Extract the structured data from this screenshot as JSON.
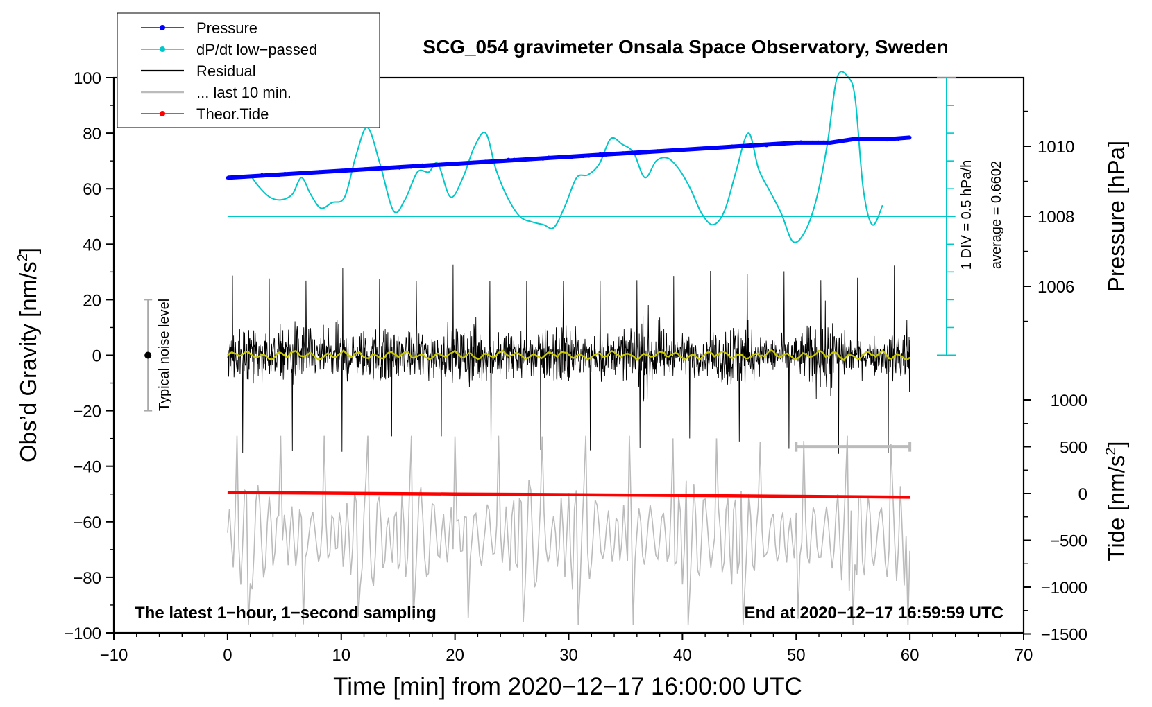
{
  "chart_data": {
    "type": "line",
    "title": "SCG_054 gravimeter Onsala Space Observatory, Sweden",
    "xlabel": "Time [min] from 2020−12−17 16:00:00 UTC",
    "ylabel_left": "Obs’d Gravity [nm/s",
    "ylabel_left_sup": "2",
    "ylabel_left_close": "]",
    "ylabel_right_pressure": "Pressure [hPa]",
    "ylabel_right_tide": "Tide [nm/s",
    "ylabel_right_tide_sup": "2",
    "ylabel_right_tide_close": "]",
    "xlim": [
      -10,
      70
    ],
    "ylim": [
      -100,
      100
    ],
    "x_ticks": [
      -10,
      0,
      10,
      20,
      30,
      40,
      50,
      60,
      70
    ],
    "x_tick_labels": [
      "−10",
      "0",
      "10",
      "20",
      "30",
      "40",
      "50",
      "60",
      "70"
    ],
    "y_ticks": [
      -100,
      -80,
      -60,
      -40,
      -20,
      0,
      20,
      40,
      60,
      80,
      100
    ],
    "y_tick_labels": [
      "−100",
      "−80",
      "−60",
      "−40",
      "−20",
      "0",
      "20",
      "40",
      "60",
      "80",
      "100"
    ],
    "pressure_axis": {
      "ticks": [
        1006,
        1008,
        1010
      ],
      "tick_labels": [
        "1006",
        "1008",
        "1010"
      ],
      "range": [
        1004,
        1012
      ]
    },
    "tide_axis": {
      "ticks": [
        -1500,
        -1000,
        -500,
        0,
        500,
        1000
      ],
      "tick_labels": [
        "−1500",
        "−1000",
        "−500",
        "0",
        "500",
        "1000"
      ],
      "range": [
        -1500,
        1000
      ]
    },
    "dpdt_scale_label": "1 DIV = 0.5 hPa/h",
    "dpdt_average_label": "average = 0.6602",
    "dpdt_baseline_gravity": 50,
    "noise_bar": {
      "x": -7,
      "center": 0,
      "half_range": 20,
      "label": "Typical noise level"
    },
    "last10_bar": {
      "x_start": 50,
      "x_end": 60,
      "y": -33
    },
    "footer_left": "The latest 1−hour, 1−second sampling",
    "footer_right": "End at 2020−12−17 16:59:59 UTC",
    "legend": [
      {
        "label": "Pressure",
        "color": "#0000ff",
        "marker": true
      },
      {
        "label": "dP/dt low−passed",
        "color": "#00c8c8",
        "marker": true
      },
      {
        "label": "Residual",
        "color": "#000000",
        "marker": false
      },
      {
        "label": "... last 10 min.",
        "color": "#bbbbbb",
        "marker": false
      },
      {
        "label": "Theor.Tide",
        "color": "#ff0000",
        "marker": true
      }
    ],
    "series": [
      {
        "name": "Pressure",
        "axis": "pressure_hPa",
        "color": "#0000ff",
        "x": [
          0,
          5,
          10,
          15,
          20,
          25,
          30,
          35,
          40,
          45,
          50,
          53,
          55,
          58,
          60
        ],
        "y": [
          1009.1,
          1009.2,
          1009.3,
          1009.4,
          1009.5,
          1009.6,
          1009.7,
          1009.8,
          1009.9,
          1010.0,
          1010.1,
          1010.1,
          1010.2,
          1010.2,
          1010.25
        ]
      },
      {
        "name": "dP/dt low−passed",
        "axis": "gravity_display",
        "color": "#00c8c8",
        "x": [
          2,
          2.7,
          3.7,
          4.7,
          5.7,
          6.5,
          7.3,
          8.2,
          9.2,
          10.3,
          11.3,
          12.3,
          13.4,
          14.6,
          15.6,
          16.7,
          17.7,
          18.5,
          19.6,
          20.7,
          21.7,
          22.7,
          23.6,
          24.6,
          25.7,
          26.8,
          27.8,
          28.7,
          29.7,
          30.7,
          31.7,
          32.7,
          33.7,
          34.7,
          35.7,
          36.7,
          37.7,
          38.7,
          39.7,
          40.7,
          41.7,
          42.7,
          43.7,
          44.7,
          45.8,
          46.7,
          47.7,
          48.7,
          49.7,
          50.7,
          51.7,
          52.7,
          53.6,
          54.6,
          55.2,
          55.9,
          56.7,
          57.6
        ],
        "y": [
          65,
          61,
          57,
          56,
          58,
          64,
          58,
          53,
          55,
          57,
          72,
          82,
          69,
          52,
          56,
          66,
          66,
          69,
          57,
          64,
          75,
          80,
          67,
          57,
          50,
          48,
          47,
          46,
          54,
          64,
          65,
          69,
          78,
          76,
          73,
          64,
          70,
          71,
          67,
          60,
          51,
          47,
          52,
          66,
          80,
          67,
          59,
          51,
          41,
          44,
          55,
          75,
          100,
          100,
          92,
          60,
          47,
          54
        ]
      },
      {
        "name": "Residual",
        "axis": "gravity",
        "color": "#000000",
        "summary": {
          "x_range": [
            0,
            60
          ],
          "mean": 0,
          "typical_amplitude": 15,
          "peak_max": 33,
          "peak_min": -36
        }
      },
      {
        "name": "Residual smoothed",
        "axis": "gravity",
        "color": "#c8c800",
        "summary": {
          "x_range": [
            0,
            60
          ],
          "mean": 0,
          "typical_amplitude": 1.5
        }
      },
      {
        "name": "Theor.Tide",
        "axis": "tide_nm_s2",
        "color": "#ff0000",
        "x": [
          0,
          10,
          20,
          30,
          40,
          50,
          60
        ],
        "y": [
          10,
          3,
          -5,
          -12,
          -20,
          -30,
          -40
        ]
      },
      {
        "name": "... last 10 min.",
        "axis": "gravity",
        "color": "#bbbbbb",
        "summary": {
          "x_range": [
            0,
            60
          ],
          "mean": -65,
          "typical_amplitude": 15,
          "peak_max": -29,
          "peak_min": -97
        }
      }
    ]
  }
}
